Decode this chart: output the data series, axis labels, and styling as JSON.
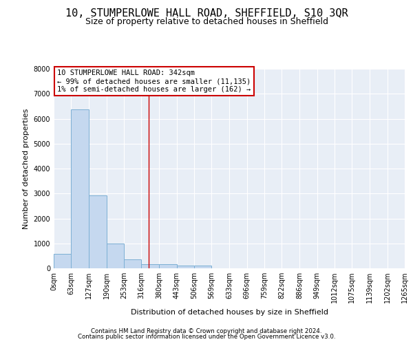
{
  "title1": "10, STUMPERLOWE HALL ROAD, SHEFFIELD, S10 3QR",
  "title2": "Size of property relative to detached houses in Sheffield",
  "xlabel": "Distribution of detached houses by size in Sheffield",
  "ylabel": "Number of detached properties",
  "bin_labels": [
    "0sqm",
    "63sqm",
    "127sqm",
    "190sqm",
    "253sqm",
    "316sqm",
    "380sqm",
    "443sqm",
    "506sqm",
    "569sqm",
    "633sqm",
    "696sqm",
    "759sqm",
    "822sqm",
    "886sqm",
    "949sqm",
    "1012sqm",
    "1075sqm",
    "1139sqm",
    "1202sqm",
    "1265sqm"
  ],
  "bar_values": [
    580,
    6380,
    2920,
    1000,
    370,
    160,
    155,
    110,
    100,
    0,
    0,
    0,
    0,
    0,
    0,
    0,
    0,
    0,
    0,
    0
  ],
  "bin_edges": [
    0,
    63,
    127,
    190,
    253,
    316,
    380,
    443,
    506,
    569,
    633,
    696,
    759,
    822,
    886,
    949,
    1012,
    1075,
    1139,
    1202,
    1265
  ],
  "property_size": 342,
  "annotation_line1": "10 STUMPERLOWE HALL ROAD: 342sqm",
  "annotation_line2": "← 99% of detached houses are smaller (11,135)",
  "annotation_line3": "1% of semi-detached houses are larger (162) →",
  "bar_color": "#c5d8ef",
  "bar_edge_color": "#7bafd4",
  "vline_color": "#cc0000",
  "annotation_box_edge_color": "#cc0000",
  "plot_bg_color": "#e8eef6",
  "grid_color": "#ffffff",
  "ylim": [
    0,
    8000
  ],
  "yticks": [
    0,
    1000,
    2000,
    3000,
    4000,
    5000,
    6000,
    7000,
    8000
  ],
  "footer1": "Contains HM Land Registry data © Crown copyright and database right 2024.",
  "footer2": "Contains public sector information licensed under the Open Government Licence v3.0.",
  "title1_fontsize": 11,
  "title2_fontsize": 9,
  "annotation_fontsize": 7.5,
  "axis_label_fontsize": 8,
  "tick_fontsize": 7
}
